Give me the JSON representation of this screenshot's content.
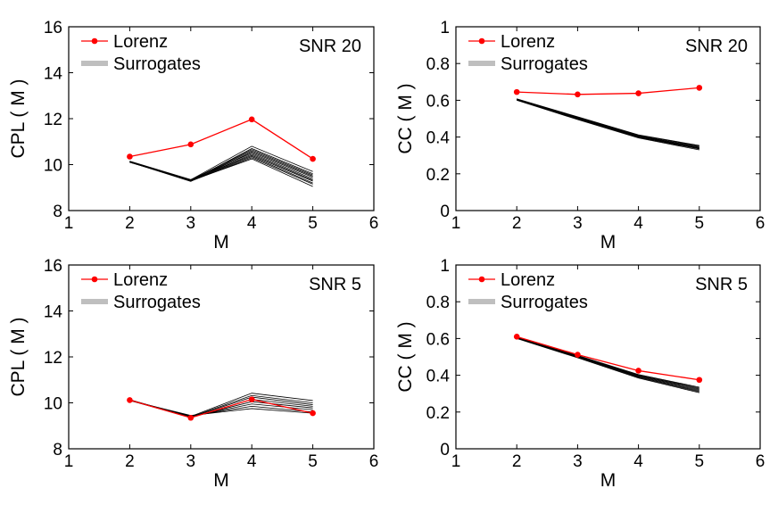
{
  "chart_data": [
    {
      "type": "line",
      "panel": "top-left",
      "annotation": "SNR 20",
      "xlabel": "M",
      "ylabel": "CPL ( M )",
      "xlim": [
        1,
        6
      ],
      "ylim": [
        8,
        16
      ],
      "xticks": [
        1,
        2,
        3,
        4,
        5,
        6
      ],
      "yticks": [
        8,
        10,
        12,
        14,
        16
      ],
      "legend": {
        "placement": "top-left",
        "entries": [
          "Lorenz",
          "Surrogates"
        ]
      },
      "x": [
        2,
        3,
        4,
        5
      ],
      "series": [
        {
          "name": "Lorenz",
          "color": "#ff0000",
          "marker": "dot",
          "values": [
            10.35,
            10.88,
            11.97,
            10.25
          ]
        }
      ],
      "surrogates": {
        "name": "Surrogates",
        "color": "#000000",
        "lines": [
          [
            10.1,
            9.3,
            10.25,
            9.05
          ],
          [
            10.12,
            9.28,
            10.3,
            9.15
          ],
          [
            10.14,
            9.3,
            10.35,
            9.2
          ],
          [
            10.1,
            9.32,
            10.4,
            9.28
          ],
          [
            10.12,
            9.3,
            10.45,
            9.32
          ],
          [
            10.15,
            9.35,
            10.5,
            9.38
          ],
          [
            10.11,
            9.27,
            10.55,
            9.45
          ],
          [
            10.13,
            9.31,
            10.6,
            9.5
          ],
          [
            10.14,
            9.33,
            10.65,
            9.55
          ],
          [
            10.12,
            9.3,
            10.7,
            9.6
          ],
          [
            10.1,
            9.34,
            10.8,
            9.7
          ]
        ]
      }
    },
    {
      "type": "line",
      "panel": "top-right",
      "annotation": "SNR 20",
      "xlabel": "M",
      "ylabel": "CC ( M )",
      "xlim": [
        1,
        6
      ],
      "ylim": [
        0,
        1
      ],
      "xticks": [
        1,
        2,
        3,
        4,
        5,
        6
      ],
      "yticks": [
        0,
        0.2,
        0.4,
        0.6,
        0.8,
        1
      ],
      "legend": {
        "placement": "top-left",
        "entries": [
          "Lorenz",
          "Surrogates"
        ]
      },
      "x": [
        2,
        3,
        4,
        5
      ],
      "series": [
        {
          "name": "Lorenz",
          "color": "#ff0000",
          "marker": "dot",
          "values": [
            0.645,
            0.632,
            0.638,
            0.668
          ]
        }
      ],
      "surrogates": {
        "name": "Surrogates",
        "color": "#000000",
        "lines": [
          [
            0.6,
            0.495,
            0.395,
            0.33
          ],
          [
            0.602,
            0.498,
            0.398,
            0.335
          ],
          [
            0.603,
            0.5,
            0.4,
            0.338
          ],
          [
            0.604,
            0.502,
            0.402,
            0.34
          ],
          [
            0.605,
            0.504,
            0.405,
            0.343
          ],
          [
            0.606,
            0.506,
            0.407,
            0.346
          ],
          [
            0.607,
            0.508,
            0.41,
            0.35
          ],
          [
            0.608,
            0.51,
            0.412,
            0.354
          ]
        ]
      }
    },
    {
      "type": "line",
      "panel": "bottom-left",
      "annotation": "SNR 5",
      "xlabel": "M",
      "ylabel": "CPL ( M )",
      "xlim": [
        1,
        6
      ],
      "ylim": [
        8,
        16
      ],
      "xticks": [
        1,
        2,
        3,
        4,
        5,
        6
      ],
      "yticks": [
        8,
        10,
        12,
        14,
        16
      ],
      "legend": {
        "placement": "top-left",
        "entries": [
          "Lorenz",
          "Surrogates"
        ]
      },
      "x": [
        2,
        3,
        4,
        5
      ],
      "series": [
        {
          "name": "Lorenz",
          "color": "#ff0000",
          "marker": "dot",
          "values": [
            10.12,
            9.35,
            10.15,
            9.55
          ]
        }
      ],
      "surrogates": {
        "name": "Surrogates",
        "color": "#000000",
        "lines": [
          [
            10.1,
            9.45,
            9.75,
            9.55
          ],
          [
            10.12,
            9.42,
            9.85,
            9.6
          ],
          [
            10.11,
            9.4,
            9.95,
            9.7
          ],
          [
            10.13,
            9.38,
            10.05,
            9.78
          ],
          [
            10.1,
            9.36,
            10.15,
            9.85
          ],
          [
            10.14,
            9.37,
            10.25,
            9.92
          ],
          [
            10.12,
            9.39,
            10.32,
            10.0
          ],
          [
            10.1,
            9.41,
            10.42,
            10.1
          ]
        ]
      }
    },
    {
      "type": "line",
      "panel": "bottom-right",
      "annotation": "SNR 5",
      "xlabel": "M",
      "ylabel": "CC ( M )",
      "xlim": [
        1,
        6
      ],
      "ylim": [
        0,
        1
      ],
      "xticks": [
        1,
        2,
        3,
        4,
        5,
        6
      ],
      "yticks": [
        0,
        0.2,
        0.4,
        0.6,
        0.8,
        1
      ],
      "legend": {
        "placement": "top-left",
        "entries": [
          "Lorenz",
          "Surrogates"
        ]
      },
      "x": [
        2,
        3,
        4,
        5
      ],
      "series": [
        {
          "name": "Lorenz",
          "color": "#ff0000",
          "marker": "dot",
          "values": [
            0.61,
            0.512,
            0.425,
            0.375
          ]
        }
      ],
      "surrogates": {
        "name": "Surrogates",
        "color": "#000000",
        "lines": [
          [
            0.6,
            0.495,
            0.385,
            0.305
          ],
          [
            0.602,
            0.498,
            0.389,
            0.31
          ],
          [
            0.603,
            0.5,
            0.392,
            0.315
          ],
          [
            0.604,
            0.502,
            0.395,
            0.32
          ],
          [
            0.605,
            0.504,
            0.398,
            0.325
          ],
          [
            0.606,
            0.506,
            0.401,
            0.33
          ],
          [
            0.607,
            0.508,
            0.404,
            0.335
          ]
        ]
      }
    }
  ]
}
